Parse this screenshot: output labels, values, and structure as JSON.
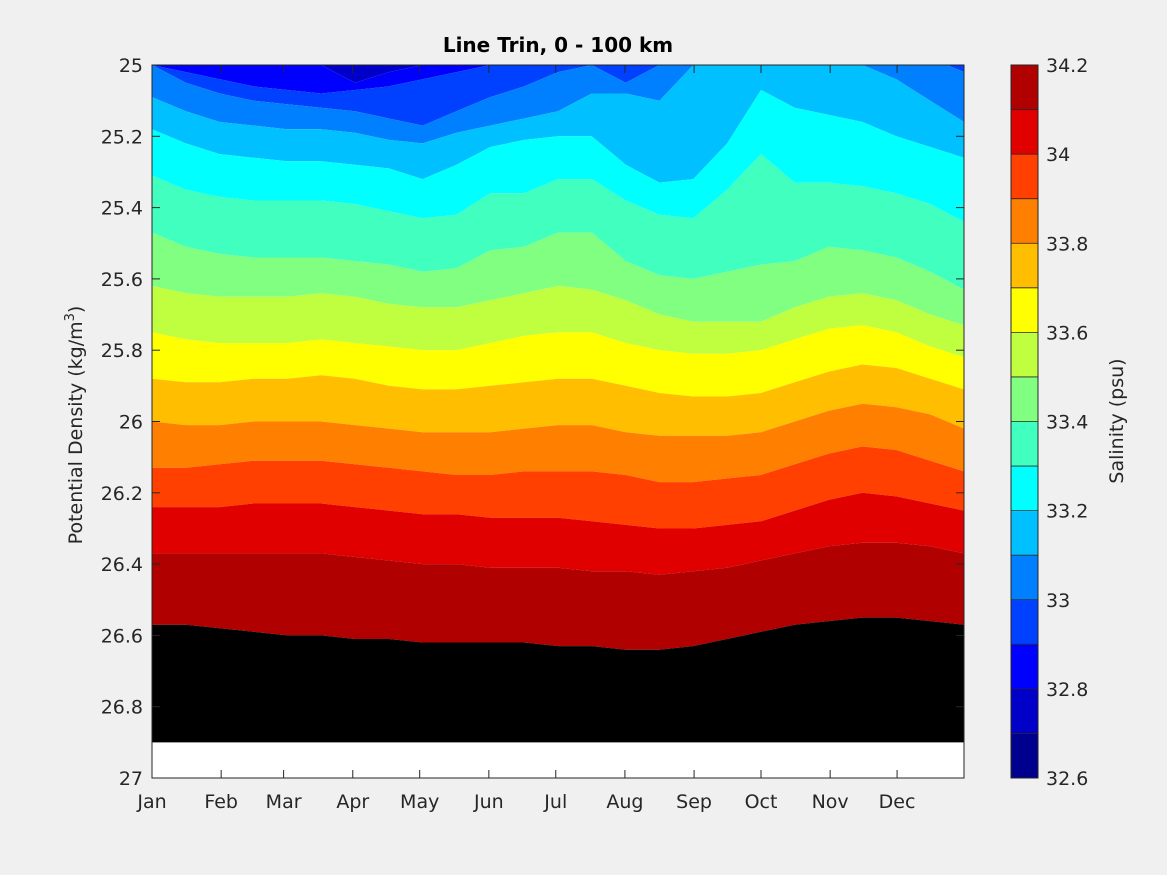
{
  "chart_data": {
    "type": "filled-contour",
    "title": "Line Trin, 0 - 100 km",
    "xlabel": "",
    "ylabel_main": "Potential Density (kg/m",
    "ylabel_sup": "3",
    "ylabel_close": ")",
    "x_ticks": [
      "Jan",
      "Feb",
      "Mar",
      "Apr",
      "May",
      "Jun",
      "Jul",
      "Aug",
      "Sep",
      "Oct",
      "Nov",
      "Dec"
    ],
    "xlim_days": [
      1,
      365
    ],
    "x_tick_days": [
      1,
      32,
      60,
      91,
      121,
      152,
      182,
      213,
      244,
      274,
      305,
      335
    ],
    "y_ticks": [
      "25",
      "25.2",
      "25.4",
      "25.6",
      "25.8",
      "26",
      "26.2",
      "26.4",
      "26.6",
      "26.8",
      "27"
    ],
    "ylim": [
      25,
      27
    ],
    "y_reversed": true,
    "colorbar": {
      "label": "Salinity (psu)",
      "range": [
        32.6,
        34.2
      ],
      "step": 0.1,
      "tick_labels": [
        "32.6",
        "32.8",
        "33",
        "33.2",
        "33.4",
        "33.6",
        "33.8",
        "34",
        "34.2"
      ],
      "colors": [
        "#00008f",
        "#0000c8",
        "#0000ff",
        "#0040ff",
        "#0080ff",
        "#00c0ff",
        "#00ffff",
        "#40ffbf",
        "#80ff80",
        "#c0ff40",
        "#ffff00",
        "#ffbf00",
        "#ff8000",
        "#ff4000",
        "#e00000",
        "#b00000"
      ]
    },
    "no_data_below": 26.9,
    "contour_levels": [
      32.8,
      32.9,
      33.0,
      33.1,
      33.2,
      33.3,
      33.4,
      33.5,
      33.6,
      33.7,
      33.8,
      33.9,
      34.0,
      34.1
    ],
    "contour_months": [
      1,
      1.5,
      2,
      2.5,
      3,
      3.5,
      4,
      4.5,
      5,
      5.5,
      6,
      6.5,
      7,
      7.5,
      8,
      8.5,
      9,
      9.5,
      10,
      10.5,
      11,
      11.5,
      12,
      12.5,
      13
    ],
    "contour_density": [
      [
        24.95,
        24.95,
        24.95,
        24.95,
        24.95,
        25.0,
        25.05,
        25.02,
        25.0,
        24.95,
        24.95,
        24.95,
        24.95,
        24.95,
        24.95,
        24.95,
        24.95,
        24.95,
        24.95,
        24.95,
        24.95,
        24.95,
        24.95,
        24.95,
        24.95
      ],
      [
        25.0,
        25.02,
        25.04,
        25.06,
        25.07,
        25.08,
        25.07,
        25.06,
        25.04,
        25.02,
        25.0,
        24.98,
        24.97,
        24.95,
        24.95,
        24.95,
        24.95,
        24.95,
        24.95,
        24.95,
        24.95,
        24.95,
        24.95,
        24.95,
        24.95
      ],
      [
        25.0,
        25.05,
        25.08,
        25.1,
        25.11,
        25.12,
        25.13,
        25.15,
        25.17,
        25.13,
        25.09,
        25.06,
        25.02,
        25.0,
        25.05,
        25.0,
        24.95,
        24.95,
        24.95,
        24.95,
        24.95,
        24.95,
        24.95,
        24.98,
        25.02
      ],
      [
        25.09,
        25.13,
        25.16,
        25.17,
        25.18,
        25.18,
        25.19,
        25.21,
        25.22,
        25.19,
        25.17,
        25.15,
        25.13,
        25.08,
        25.08,
        25.1,
        25.0,
        24.95,
        24.95,
        24.95,
        24.98,
        25.0,
        25.04,
        25.1,
        25.16
      ],
      [
        25.18,
        25.22,
        25.25,
        25.26,
        25.27,
        25.27,
        25.28,
        25.29,
        25.32,
        25.28,
        25.23,
        25.21,
        25.2,
        25.2,
        25.28,
        25.33,
        25.32,
        25.22,
        25.07,
        25.12,
        25.14,
        25.16,
        25.2,
        25.23,
        25.26
      ],
      [
        25.31,
        25.35,
        25.37,
        25.38,
        25.38,
        25.38,
        25.39,
        25.41,
        25.43,
        25.42,
        25.36,
        25.36,
        25.32,
        25.32,
        25.38,
        25.42,
        25.43,
        25.35,
        25.25,
        25.33,
        25.33,
        25.34,
        25.36,
        25.39,
        25.44
      ],
      [
        25.47,
        25.51,
        25.53,
        25.54,
        25.54,
        25.54,
        25.55,
        25.56,
        25.58,
        25.57,
        25.52,
        25.51,
        25.47,
        25.47,
        25.55,
        25.59,
        25.6,
        25.58,
        25.56,
        25.55,
        25.51,
        25.52,
        25.54,
        25.58,
        25.63
      ],
      [
        25.62,
        25.64,
        25.65,
        25.65,
        25.65,
        25.64,
        25.65,
        25.67,
        25.68,
        25.68,
        25.66,
        25.64,
        25.62,
        25.63,
        25.66,
        25.7,
        25.72,
        25.72,
        25.72,
        25.68,
        25.65,
        25.64,
        25.66,
        25.7,
        25.73
      ],
      [
        25.75,
        25.77,
        25.78,
        25.78,
        25.78,
        25.77,
        25.78,
        25.79,
        25.8,
        25.8,
        25.78,
        25.76,
        25.75,
        25.75,
        25.78,
        25.8,
        25.81,
        25.81,
        25.8,
        25.77,
        25.74,
        25.73,
        25.75,
        25.79,
        25.82
      ],
      [
        25.88,
        25.89,
        25.89,
        25.88,
        25.88,
        25.87,
        25.88,
        25.9,
        25.91,
        25.91,
        25.9,
        25.89,
        25.88,
        25.88,
        25.9,
        25.92,
        25.93,
        25.93,
        25.92,
        25.89,
        25.86,
        25.84,
        25.85,
        25.88,
        25.91
      ],
      [
        26.0,
        26.01,
        26.01,
        26.0,
        26.0,
        26.0,
        26.01,
        26.02,
        26.03,
        26.03,
        26.03,
        26.02,
        26.01,
        26.01,
        26.03,
        26.04,
        26.04,
        26.04,
        26.03,
        26.0,
        25.97,
        25.95,
        25.96,
        25.98,
        26.02
      ],
      [
        26.13,
        26.13,
        26.12,
        26.11,
        26.11,
        26.11,
        26.12,
        26.13,
        26.14,
        26.15,
        26.15,
        26.14,
        26.14,
        26.14,
        26.15,
        26.17,
        26.17,
        26.16,
        26.15,
        26.12,
        26.09,
        26.07,
        26.08,
        26.11,
        26.14
      ],
      [
        26.24,
        26.24,
        26.24,
        26.23,
        26.23,
        26.23,
        26.24,
        26.25,
        26.26,
        26.26,
        26.27,
        26.27,
        26.27,
        26.28,
        26.29,
        26.3,
        26.3,
        26.29,
        26.28,
        26.25,
        26.22,
        26.2,
        26.21,
        26.23,
        26.25
      ],
      [
        26.37,
        26.37,
        26.37,
        26.37,
        26.37,
        26.37,
        26.38,
        26.39,
        26.4,
        26.4,
        26.41,
        26.41,
        26.41,
        26.42,
        26.42,
        26.43,
        26.42,
        26.41,
        26.39,
        26.37,
        26.35,
        26.34,
        26.34,
        26.35,
        26.37
      ],
      [
        26.57,
        26.57,
        26.58,
        26.59,
        26.6,
        26.6,
        26.61,
        26.61,
        26.62,
        26.62,
        26.62,
        26.62,
        26.63,
        26.63,
        26.64,
        26.64,
        26.63,
        26.61,
        26.59,
        26.57,
        26.56,
        26.55,
        26.55,
        26.56,
        26.57
      ]
    ]
  }
}
